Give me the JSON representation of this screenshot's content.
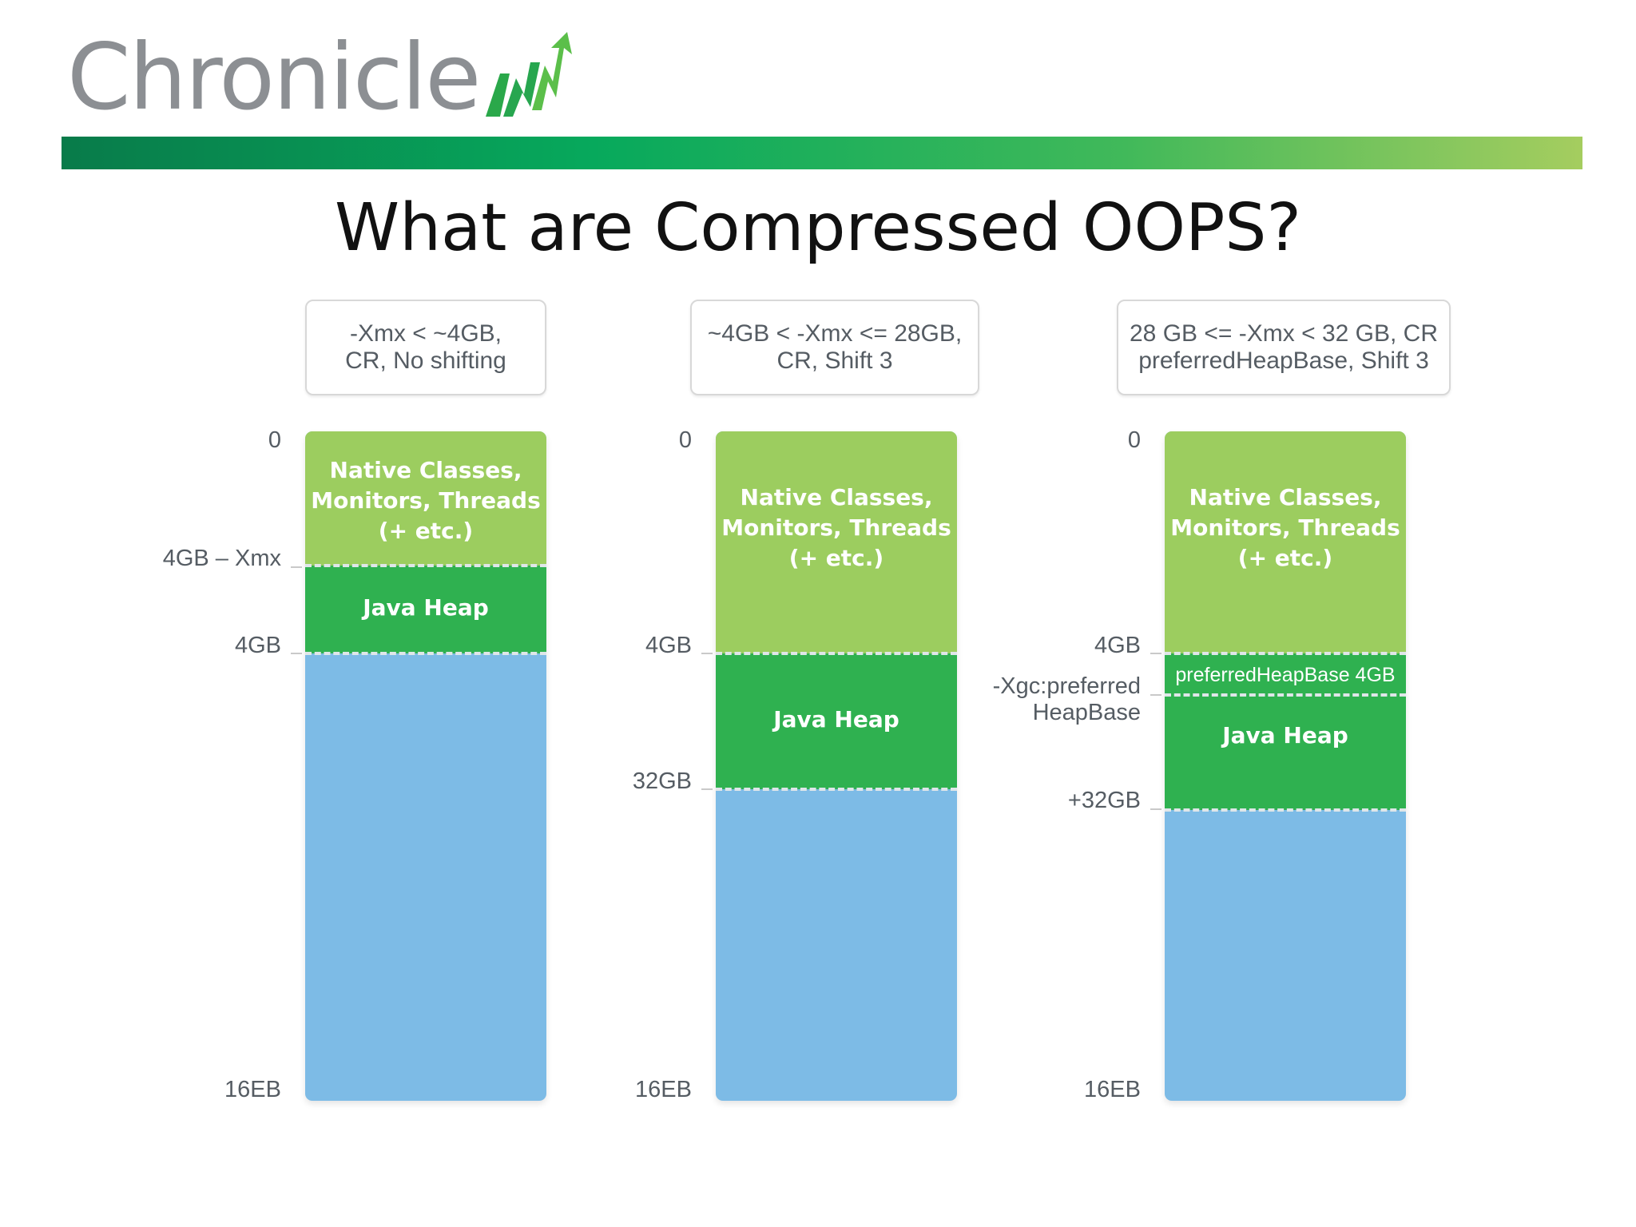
{
  "logo": {
    "text": "Chronicle",
    "icon": "rising-chart-arrow-icon"
  },
  "title": "What are Compressed OOPS?",
  "colors": {
    "native": "#9ccd5f",
    "java_heap": "#2fb150",
    "address_space": "#7dbbe6",
    "banner_start": "#087b4a",
    "banner_end": "#a5cd5f"
  },
  "columns": [
    {
      "header": [
        "-Xmx < ~4GB,",
        "CR, No shifting"
      ],
      "native_label": [
        "Native Classes,",
        "Monitors, Threads",
        "(+ etc.)"
      ],
      "heap_label": "Java Heap",
      "markers": {
        "top": "0",
        "heap_start": "4GB – Xmx",
        "heap_end": "4GB",
        "bottom": "16EB"
      }
    },
    {
      "header": [
        "~4GB < -Xmx <= 28GB,",
        "CR, Shift 3"
      ],
      "native_label": [
        "Native Classes,",
        "Monitors, Threads",
        "(+ etc.)"
      ],
      "heap_label": "Java Heap",
      "markers": {
        "top": "0",
        "heap_start": "4GB",
        "heap_end": "32GB",
        "bottom": "16EB"
      }
    },
    {
      "header": [
        "28 GB <= -Xmx < 32 GB, CR",
        "preferredHeapBase, Shift 3"
      ],
      "native_label": [
        "Native Classes,",
        "Monitors, Threads",
        "(+ etc.)"
      ],
      "heap_base_label": "preferredHeapBase 4GB",
      "heap_label": "Java Heap",
      "markers": {
        "top": "0",
        "heap_start": "4GB",
        "heap_base": [
          "-Xgc:preferred",
          "HeapBase"
        ],
        "heap_end": "+32GB",
        "bottom": "16EB"
      }
    }
  ]
}
